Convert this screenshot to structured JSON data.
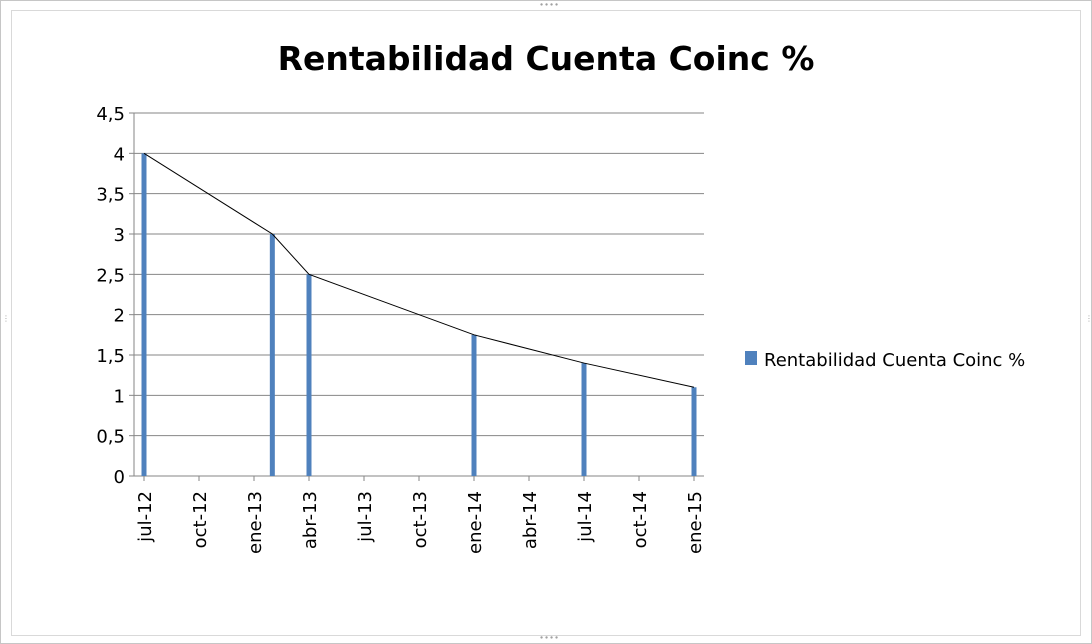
{
  "chart_data": {
    "type": "bar",
    "title": "Rentabilidad Cuenta Coinc %",
    "xlabel": "",
    "ylabel": "",
    "ylim": [
      0,
      4.5
    ],
    "y_ticks": [
      "0",
      "0,5",
      "1",
      "1,5",
      "2",
      "2,5",
      "3",
      "3,5",
      "4",
      "4,5"
    ],
    "x_ticks": [
      "jul-12",
      "oct-12",
      "ene-13",
      "abr-13",
      "jul-13",
      "oct-13",
      "ene-14",
      "abr-14",
      "jul-14",
      "oct-14",
      "ene-15"
    ],
    "x_range": [
      "2012-07",
      "2015-01"
    ],
    "grid": "horizontal",
    "legend_position": "right",
    "series": [
      {
        "name": "Rentabilidad Cuenta Coinc %",
        "color": "#4f81bd",
        "points": [
          {
            "date": "2012-07",
            "value": 4
          },
          {
            "date": "2013-02",
            "value": 3
          },
          {
            "date": "2013-04",
            "value": 2.5
          },
          {
            "date": "2014-01",
            "value": 1.75
          },
          {
            "date": "2014-07",
            "value": 1.4
          },
          {
            "date": "2015-01",
            "value": 1.1
          }
        ]
      }
    ],
    "connector_line_color": "#000000"
  }
}
